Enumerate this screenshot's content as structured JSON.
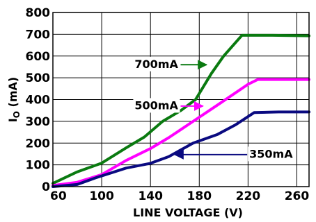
{
  "chart_data": {
    "type": "line",
    "xlabel": "LINE VOLTAGE (V)",
    "ylabel": {
      "main": "I",
      "sub": "O",
      "rest": " (mA)"
    },
    "xlim": [
      60,
      270
    ],
    "ylim": [
      0,
      800
    ],
    "x_ticks": [
      60,
      100,
      140,
      180,
      220,
      260
    ],
    "y_ticks": [
      0,
      100,
      200,
      300,
      400,
      500,
      600,
      700,
      800
    ],
    "grid": true,
    "series": [
      {
        "name": "700mA",
        "color": "#0a7a10",
        "points": [
          [
            60,
            15
          ],
          [
            80,
            68
          ],
          [
            100,
            108
          ],
          [
            120,
            178
          ],
          [
            135,
            228
          ],
          [
            150,
            300
          ],
          [
            165,
            350
          ],
          [
            177,
            400
          ],
          [
            190,
            520
          ],
          [
            200,
            600
          ],
          [
            215,
            695
          ],
          [
            240,
            695
          ],
          [
            270,
            693
          ]
        ]
      },
      {
        "name": "500mA",
        "color": "#ff00ff",
        "points": [
          [
            60,
            5
          ],
          [
            80,
            20
          ],
          [
            100,
            55
          ],
          [
            120,
            120
          ],
          [
            140,
            175
          ],
          [
            155,
            225
          ],
          [
            175,
            300
          ],
          [
            195,
            375
          ],
          [
            220,
            470
          ],
          [
            228,
            492
          ],
          [
            250,
            492
          ],
          [
            270,
            492
          ]
        ]
      },
      {
        "name": "350mA",
        "color": "#0a0a80",
        "points": [
          [
            60,
            0
          ],
          [
            80,
            10
          ],
          [
            95,
            40
          ],
          [
            120,
            85
          ],
          [
            140,
            107
          ],
          [
            155,
            138
          ],
          [
            175,
            200
          ],
          [
            195,
            240
          ],
          [
            210,
            285
          ],
          [
            225,
            340
          ],
          [
            245,
            343
          ],
          [
            270,
            343
          ]
        ]
      }
    ],
    "annotations": [
      {
        "series": "700mA",
        "text": "700mA",
        "x": 127,
        "y": 560,
        "arrow_to": [
          186,
          560
        ]
      },
      {
        "series": "500mA",
        "text": "500mA",
        "x": 127,
        "y": 370,
        "arrow_to": [
          183,
          370
        ]
      },
      {
        "series": "350mA",
        "text": "350mA",
        "x": 221,
        "y": 147,
        "arrow_to": [
          160,
          147
        ]
      }
    ]
  }
}
